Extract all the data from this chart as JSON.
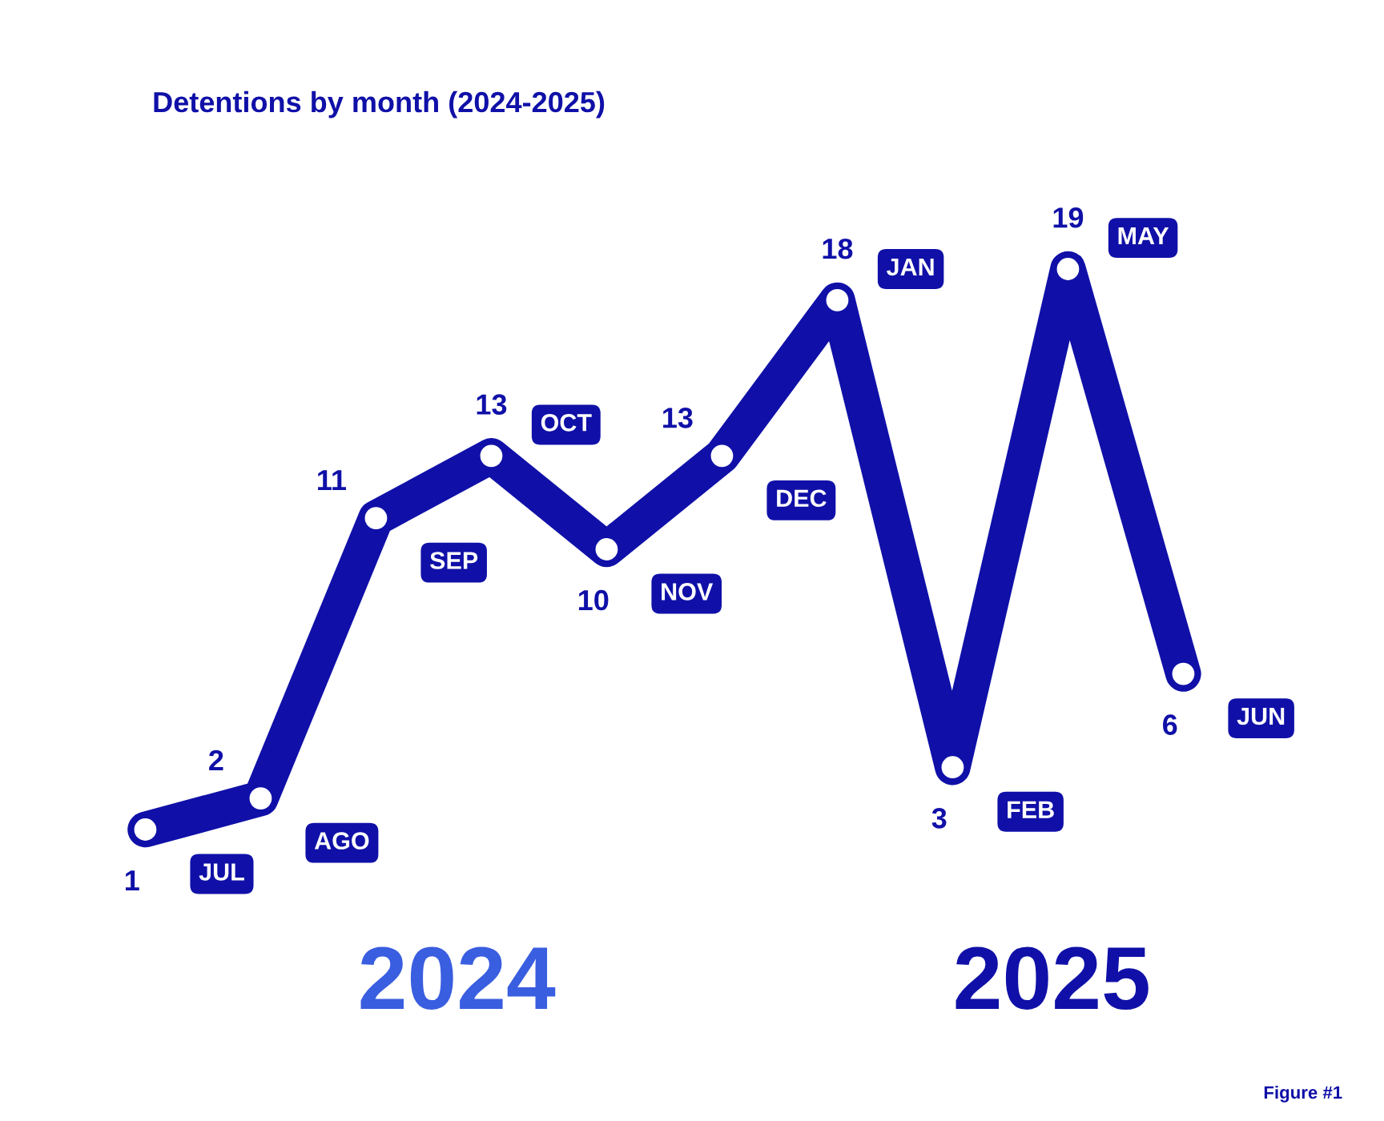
{
  "chart_data": {
    "type": "line",
    "title": "Detentions by month (2024-2025)",
    "categories": [
      null,
      null,
      null,
      null,
      null,
      null,
      null,
      null,
      null,
      null
    ],
    "series": [
      {
        "color": "#1010a8",
        "values": [
          1,
          2,
          11,
          13,
          10,
          13,
          18,
          3,
          19,
          6
        ]
      }
    ],
    "data_labels": true,
    "marker": "circle",
    "line_style": "solid",
    "grid": false,
    "legend": false,
    "annotations": [
      "JUL",
      "AGO",
      "SEP",
      "OCT",
      "NOV",
      "DEC",
      "JAN",
      "FEB",
      "MAY",
      "JUN",
      "2024",
      "2025",
      "Figure #1"
    ]
  }
}
